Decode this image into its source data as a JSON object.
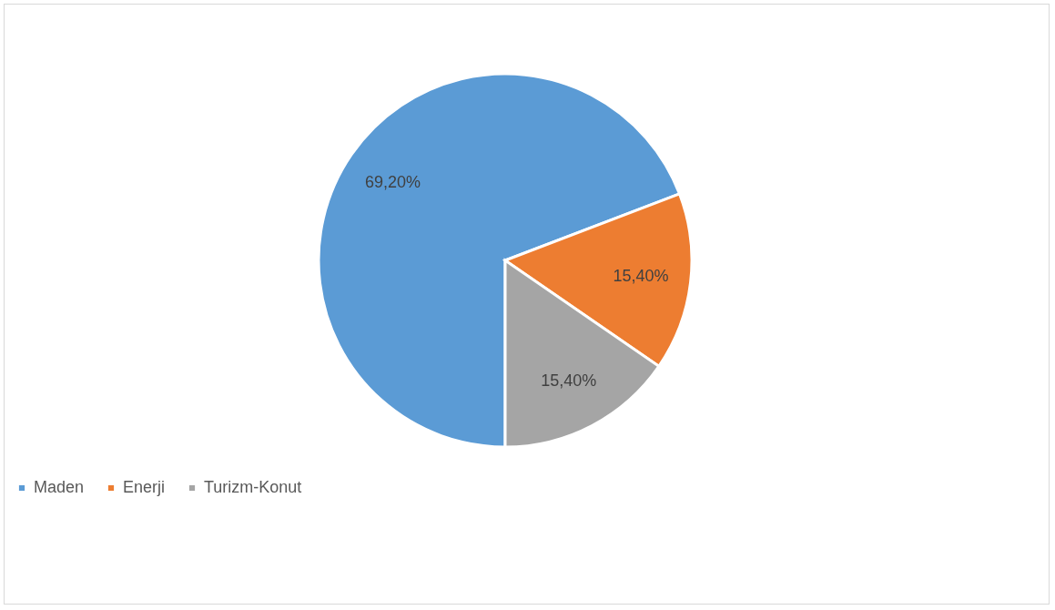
{
  "chart_data": {
    "type": "pie",
    "categories": [
      "Maden",
      "Enerji",
      "Turizm-Konut"
    ],
    "values": [
      69.2,
      15.4,
      15.4
    ],
    "colors": [
      "#5b9bd5",
      "#ed7d31",
      "#a5a5a5"
    ],
    "value_labels": [
      "69,20%",
      "15,40%",
      "15,40%"
    ],
    "legend": "bottom"
  }
}
